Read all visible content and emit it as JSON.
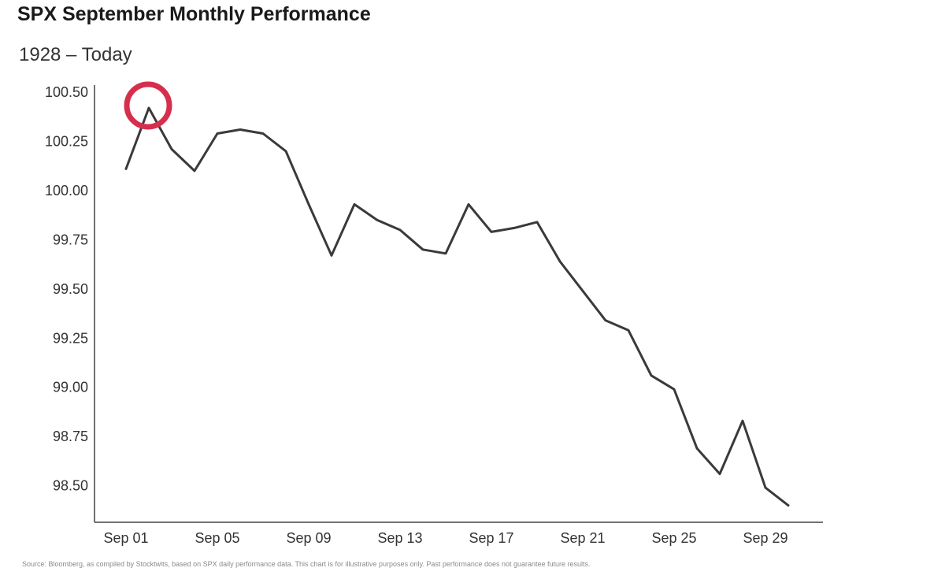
{
  "chart_data": {
    "type": "line",
    "title": "SPX September Monthly Performance",
    "subtitle": "1928 – Today",
    "xlabel": "",
    "ylabel": "",
    "x": [
      "Sep 01",
      "Sep 02",
      "Sep 03",
      "Sep 04",
      "Sep 05",
      "Sep 06",
      "Sep 07",
      "Sep 08",
      "Sep 09",
      "Sep 10",
      "Sep 11",
      "Sep 12",
      "Sep 13",
      "Sep 14",
      "Sep 15",
      "Sep 16",
      "Sep 17",
      "Sep 18",
      "Sep 19",
      "Sep 20",
      "Sep 21",
      "Sep 22",
      "Sep 23",
      "Sep 24",
      "Sep 25",
      "Sep 26",
      "Sep 27",
      "Sep 28",
      "Sep 29",
      "Sep 30"
    ],
    "series": [
      {
        "values": [
          100.11,
          100.42,
          100.21,
          100.1,
          100.29,
          100.31,
          100.29,
          100.2,
          99.93,
          99.67,
          99.93,
          99.85,
          99.8,
          99.7,
          99.68,
          99.93,
          99.79,
          99.81,
          99.84,
          99.64,
          99.49,
          99.34,
          99.29,
          99.06,
          98.99,
          98.69,
          98.56,
          98.83,
          98.49,
          98.4
        ],
        "color": "#3a3a3a"
      }
    ],
    "x_ticks": [
      "Sep 01",
      "Sep 05",
      "Sep 09",
      "Sep 13",
      "Sep 17",
      "Sep 21",
      "Sep 25",
      "Sep 29"
    ],
    "y_ticks": [
      "100.50",
      "100.25",
      "100.00",
      "99.75",
      "99.50",
      "99.25",
      "99.00",
      "98.75",
      "98.50"
    ],
    "ylim": [
      98.4,
      100.55
    ],
    "grid": false,
    "annotation": {
      "type": "circle",
      "x": "Sep 02",
      "y": 100.42,
      "color": "#d62f4e"
    }
  },
  "footer_text": "Source: Bloomberg, as compiled by Stocktwits, based on SPX daily performance data. This chart is for illustrative purposes only. Past performance does not guarantee future results."
}
